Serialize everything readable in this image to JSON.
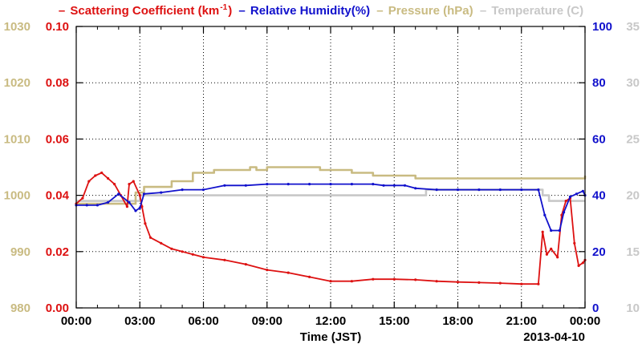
{
  "legend": {
    "scattering": "Scattering Coefficient (km",
    "scattering_sup": "-1",
    "scattering_end": ")",
    "humidity": "Relative Humidity(%)",
    "pressure": "Pressure (hPa)",
    "temperature": "Temperature (C)",
    "dash": "–"
  },
  "chart_data": {
    "type": "line",
    "xlabel": "Time (JST)",
    "date_label": "2013-04-10",
    "x_ticks": [
      "00:00",
      "03:00",
      "06:00",
      "09:00",
      "12:00",
      "15:00",
      "18:00",
      "21:00",
      "00:00"
    ],
    "xlim": [
      0,
      24
    ],
    "grid": true,
    "axes": {
      "pressure": {
        "side": "far-left",
        "ylim": [
          980,
          1030
        ],
        "ticks": [
          "980",
          "990",
          "1000",
          "1010",
          "1020",
          "1030"
        ],
        "color": "#c9bb82"
      },
      "scattering": {
        "side": "left",
        "ylim": [
          0,
          0.1
        ],
        "ticks": [
          "0.00",
          "0.02",
          "0.04",
          "0.06",
          "0.08",
          "0.10"
        ],
        "color": "#dd1111"
      },
      "humidity": {
        "side": "right",
        "ylim": [
          0,
          100
        ],
        "ticks": [
          "0",
          "20",
          "40",
          "60",
          "80",
          "100"
        ],
        "color": "#1111cc"
      },
      "temperature": {
        "side": "far-right",
        "ylim": [
          10,
          35
        ],
        "ticks": [
          "10",
          "15",
          "20",
          "25",
          "30",
          "35"
        ],
        "color": "#c8c8c8"
      }
    },
    "series": [
      {
        "name": "Scattering Coefficient",
        "axis": "scattering",
        "color": "#dd1111",
        "x": [
          0,
          0.3,
          0.6,
          0.9,
          1.2,
          1.5,
          1.8,
          2.1,
          2.4,
          2.5,
          2.7,
          3.0,
          3.1,
          3.25,
          3.5,
          4,
          4.5,
          5,
          5.5,
          6,
          7,
          8,
          9,
          10,
          11,
          12,
          13,
          14,
          15,
          16,
          17,
          18,
          19,
          20,
          21,
          21.8,
          22.0,
          22.2,
          22.4,
          22.7,
          22.9,
          23.1,
          23.3,
          23.5,
          23.7,
          23.9,
          24
        ],
        "values": [
          0.037,
          0.039,
          0.045,
          0.047,
          0.048,
          0.046,
          0.044,
          0.04,
          0.036,
          0.044,
          0.045,
          0.04,
          0.036,
          0.03,
          0.025,
          0.023,
          0.021,
          0.02,
          0.019,
          0.018,
          0.017,
          0.0155,
          0.0135,
          0.0125,
          0.011,
          0.0095,
          0.0095,
          0.0102,
          0.0102,
          0.01,
          0.0095,
          0.0092,
          0.009,
          0.0088,
          0.0085,
          0.0085,
          0.027,
          0.019,
          0.021,
          0.018,
          0.033,
          0.038,
          0.039,
          0.023,
          0.015,
          0.016,
          0.017
        ]
      },
      {
        "name": "Relative Humidity",
        "axis": "humidity",
        "color": "#1111cc",
        "x": [
          0,
          0.5,
          1.0,
          1.5,
          2.0,
          2.5,
          2.8,
          3.0,
          3.2,
          4,
          5,
          6,
          7,
          8,
          9,
          10,
          11,
          12,
          13,
          14,
          14.5,
          15,
          15.5,
          16,
          17,
          18,
          19,
          20,
          21,
          21.8,
          22.1,
          22.4,
          22.8,
          23.0,
          23.3,
          23.6,
          23.9,
          24
        ],
        "values": [
          36.5,
          36.5,
          36.5,
          37.5,
          40.5,
          37.5,
          34.5,
          35.5,
          40.5,
          41.0,
          42.0,
          42.0,
          43.5,
          43.5,
          44.0,
          44.0,
          44.0,
          44.0,
          44.0,
          44.0,
          43.5,
          43.5,
          43.5,
          42.5,
          42.0,
          42.0,
          42.0,
          42.0,
          42.0,
          42.0,
          33.0,
          27.5,
          27.5,
          34.0,
          39.5,
          40.5,
          41.5,
          40.0
        ]
      },
      {
        "name": "Pressure",
        "axis": "pressure",
        "color": "#c9bb82",
        "x": [
          0,
          1.5,
          2.8,
          3.2,
          4.5,
          5.5,
          6.5,
          7.5,
          8.2,
          8.5,
          9,
          11,
          11.5,
          13,
          14,
          16,
          18,
          20,
          22,
          23.4,
          24
        ],
        "values": [
          998.5,
          998.5,
          1000.5,
          1001.5,
          1002.5,
          1004.0,
          1004.5,
          1004.5,
          1005.0,
          1004.5,
          1005.0,
          1005.0,
          1004.5,
          1004.0,
          1003.5,
          1003.0,
          1003.0,
          1003.0,
          1003.0,
          1003.0,
          1003.5
        ]
      },
      {
        "name": "Temperature",
        "axis": "temperature",
        "color": "#c8c8c8",
        "x": [
          0,
          1.5,
          3.0,
          3.5,
          9,
          15,
          15.8,
          16.5,
          21.5,
          22.0,
          22.3,
          23.5,
          24
        ],
        "values": [
          19.5,
          19.5,
          20.0,
          20.0,
          20.0,
          20.0,
          20.0,
          20.5,
          20.5,
          20.0,
          19.5,
          19.5,
          19.5
        ]
      }
    ]
  }
}
